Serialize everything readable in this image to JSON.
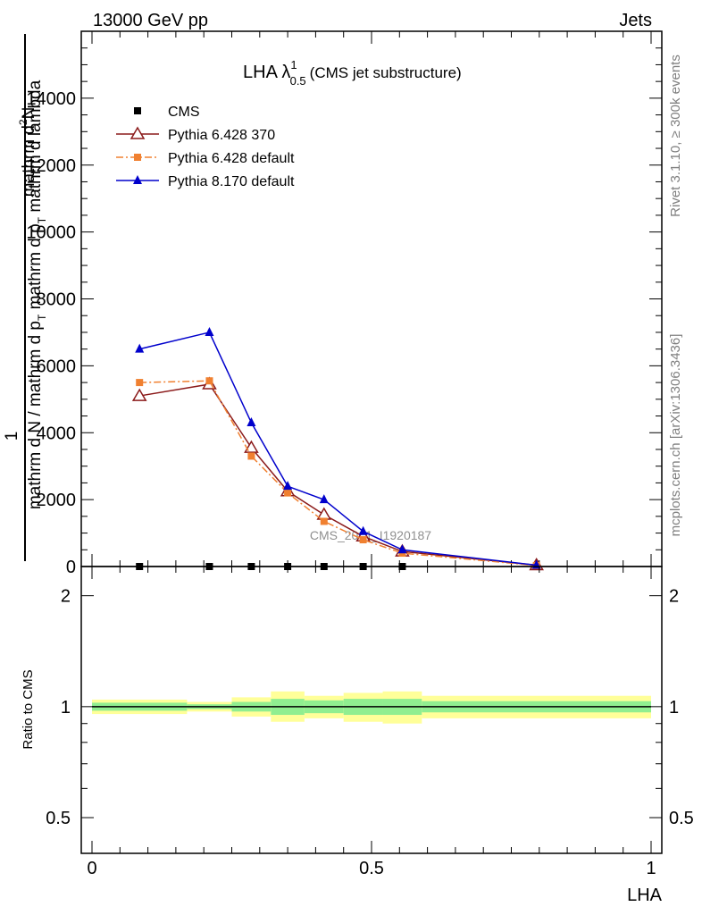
{
  "header": {
    "left": "13000 GeV pp",
    "right": "Jets"
  },
  "side_labels": {
    "rivet": "Rivet 3.1.10, ≥ 300k events",
    "mcplots": "mcplots.cern.ch [arXiv:1306.3436]"
  },
  "watermark": "CMS_2021_I1920187",
  "chart_data": [
    {
      "type": "line",
      "panel": "main",
      "title_main": "LHA λ",
      "title_sup": "1",
      "title_sub": "0.5",
      "title_suffix": "(CMS jet substructure)",
      "ylabel_num_text": "mathrm d",
      "ylabel_num_sup": "2",
      "ylabel_num_end": "N",
      "ylabel_frac_one": "1",
      "ylabel_den_text": "mathrm d N / mathrm d p",
      "ylabel_den_sub": "T",
      "ylabel_den_text2": " mathrm d p",
      "ylabel_den_sub2": "T",
      "ylabel_den_text3": " mathrm d lambda",
      "xlim": [
        0,
        1
      ],
      "ylim": [
        0,
        16000
      ],
      "yticks": [
        0,
        2000,
        4000,
        6000,
        8000,
        10000,
        12000,
        14000
      ],
      "ytick_labels": [
        "0",
        "2000",
        "4000",
        "6000",
        "8000",
        "10000",
        "12000",
        "14000"
      ],
      "legend_position": "top-left",
      "series": [
        {
          "name": "CMS",
          "color": "#000000",
          "marker": "square",
          "x": [
            0.085,
            0.21,
            0.285,
            0.35,
            0.415,
            0.485,
            0.555
          ],
          "y": [
            0,
            0,
            0,
            0,
            0,
            0,
            0
          ]
        },
        {
          "name": "Pythia 6.428 370",
          "color": "#8b1a1a",
          "marker": "open-triangle",
          "line": "solid",
          "x": [
            0.085,
            0.21,
            0.285,
            0.35,
            0.415,
            0.485,
            0.555,
            0.795
          ],
          "y": [
            5100,
            5450,
            3550,
            2250,
            1550,
            900,
            450,
            40
          ]
        },
        {
          "name": "Pythia 6.428 default",
          "color": "#f08030",
          "marker": "square",
          "line": "dashdot",
          "x": [
            0.085,
            0.21,
            0.285,
            0.35,
            0.415,
            0.485,
            0.555,
            0.795
          ],
          "y": [
            5500,
            5550,
            3300,
            2200,
            1350,
            800,
            400,
            30
          ]
        },
        {
          "name": "Pythia 8.170 default",
          "color": "#0000cc",
          "marker": "triangle",
          "line": "solid",
          "x": [
            0.085,
            0.21,
            0.285,
            0.35,
            0.415,
            0.485,
            0.555,
            0.795
          ],
          "y": [
            6500,
            7000,
            4300,
            2400,
            2000,
            1050,
            500,
            40
          ]
        }
      ]
    },
    {
      "type": "area",
      "panel": "ratio",
      "ylabel": "Ratio to CMS",
      "xlabel": "LHA",
      "xlim": [
        0,
        1
      ],
      "ylim": [
        0.4,
        2.4
      ],
      "log_scale_y": true,
      "yticks": [
        0.5,
        1,
        2
      ],
      "ytick_labels": [
        "0.5",
        "1",
        "2"
      ],
      "xticks": [
        0,
        0.5,
        1
      ],
      "xtick_labels": [
        "0",
        "0.5",
        "1"
      ],
      "reference_line": 1,
      "bins": [
        {
          "x0": 0.0,
          "x1": 0.17,
          "inner": [
            0.975,
            1.025
          ],
          "outer": [
            0.955,
            1.045
          ]
        },
        {
          "x0": 0.17,
          "x1": 0.25,
          "inner": [
            0.985,
            1.015
          ],
          "outer": [
            0.97,
            1.03
          ]
        },
        {
          "x0": 0.25,
          "x1": 0.32,
          "inner": [
            0.97,
            1.03
          ],
          "outer": [
            0.94,
            1.06
          ]
        },
        {
          "x0": 0.32,
          "x1": 0.38,
          "inner": [
            0.95,
            1.05
          ],
          "outer": [
            0.91,
            1.1
          ]
        },
        {
          "x0": 0.38,
          "x1": 0.45,
          "inner": [
            0.96,
            1.04
          ],
          "outer": [
            0.93,
            1.07
          ]
        },
        {
          "x0": 0.45,
          "x1": 0.52,
          "inner": [
            0.95,
            1.05
          ],
          "outer": [
            0.91,
            1.09
          ]
        },
        {
          "x0": 0.52,
          "x1": 0.59,
          "inner": [
            0.95,
            1.05
          ],
          "outer": [
            0.9,
            1.1
          ]
        },
        {
          "x0": 0.59,
          "x1": 1.0,
          "inner": [
            0.965,
            1.035
          ],
          "outer": [
            0.93,
            1.07
          ]
        }
      ],
      "colors": {
        "inner": "#90ee90",
        "outer": "#ffff99"
      }
    }
  ]
}
